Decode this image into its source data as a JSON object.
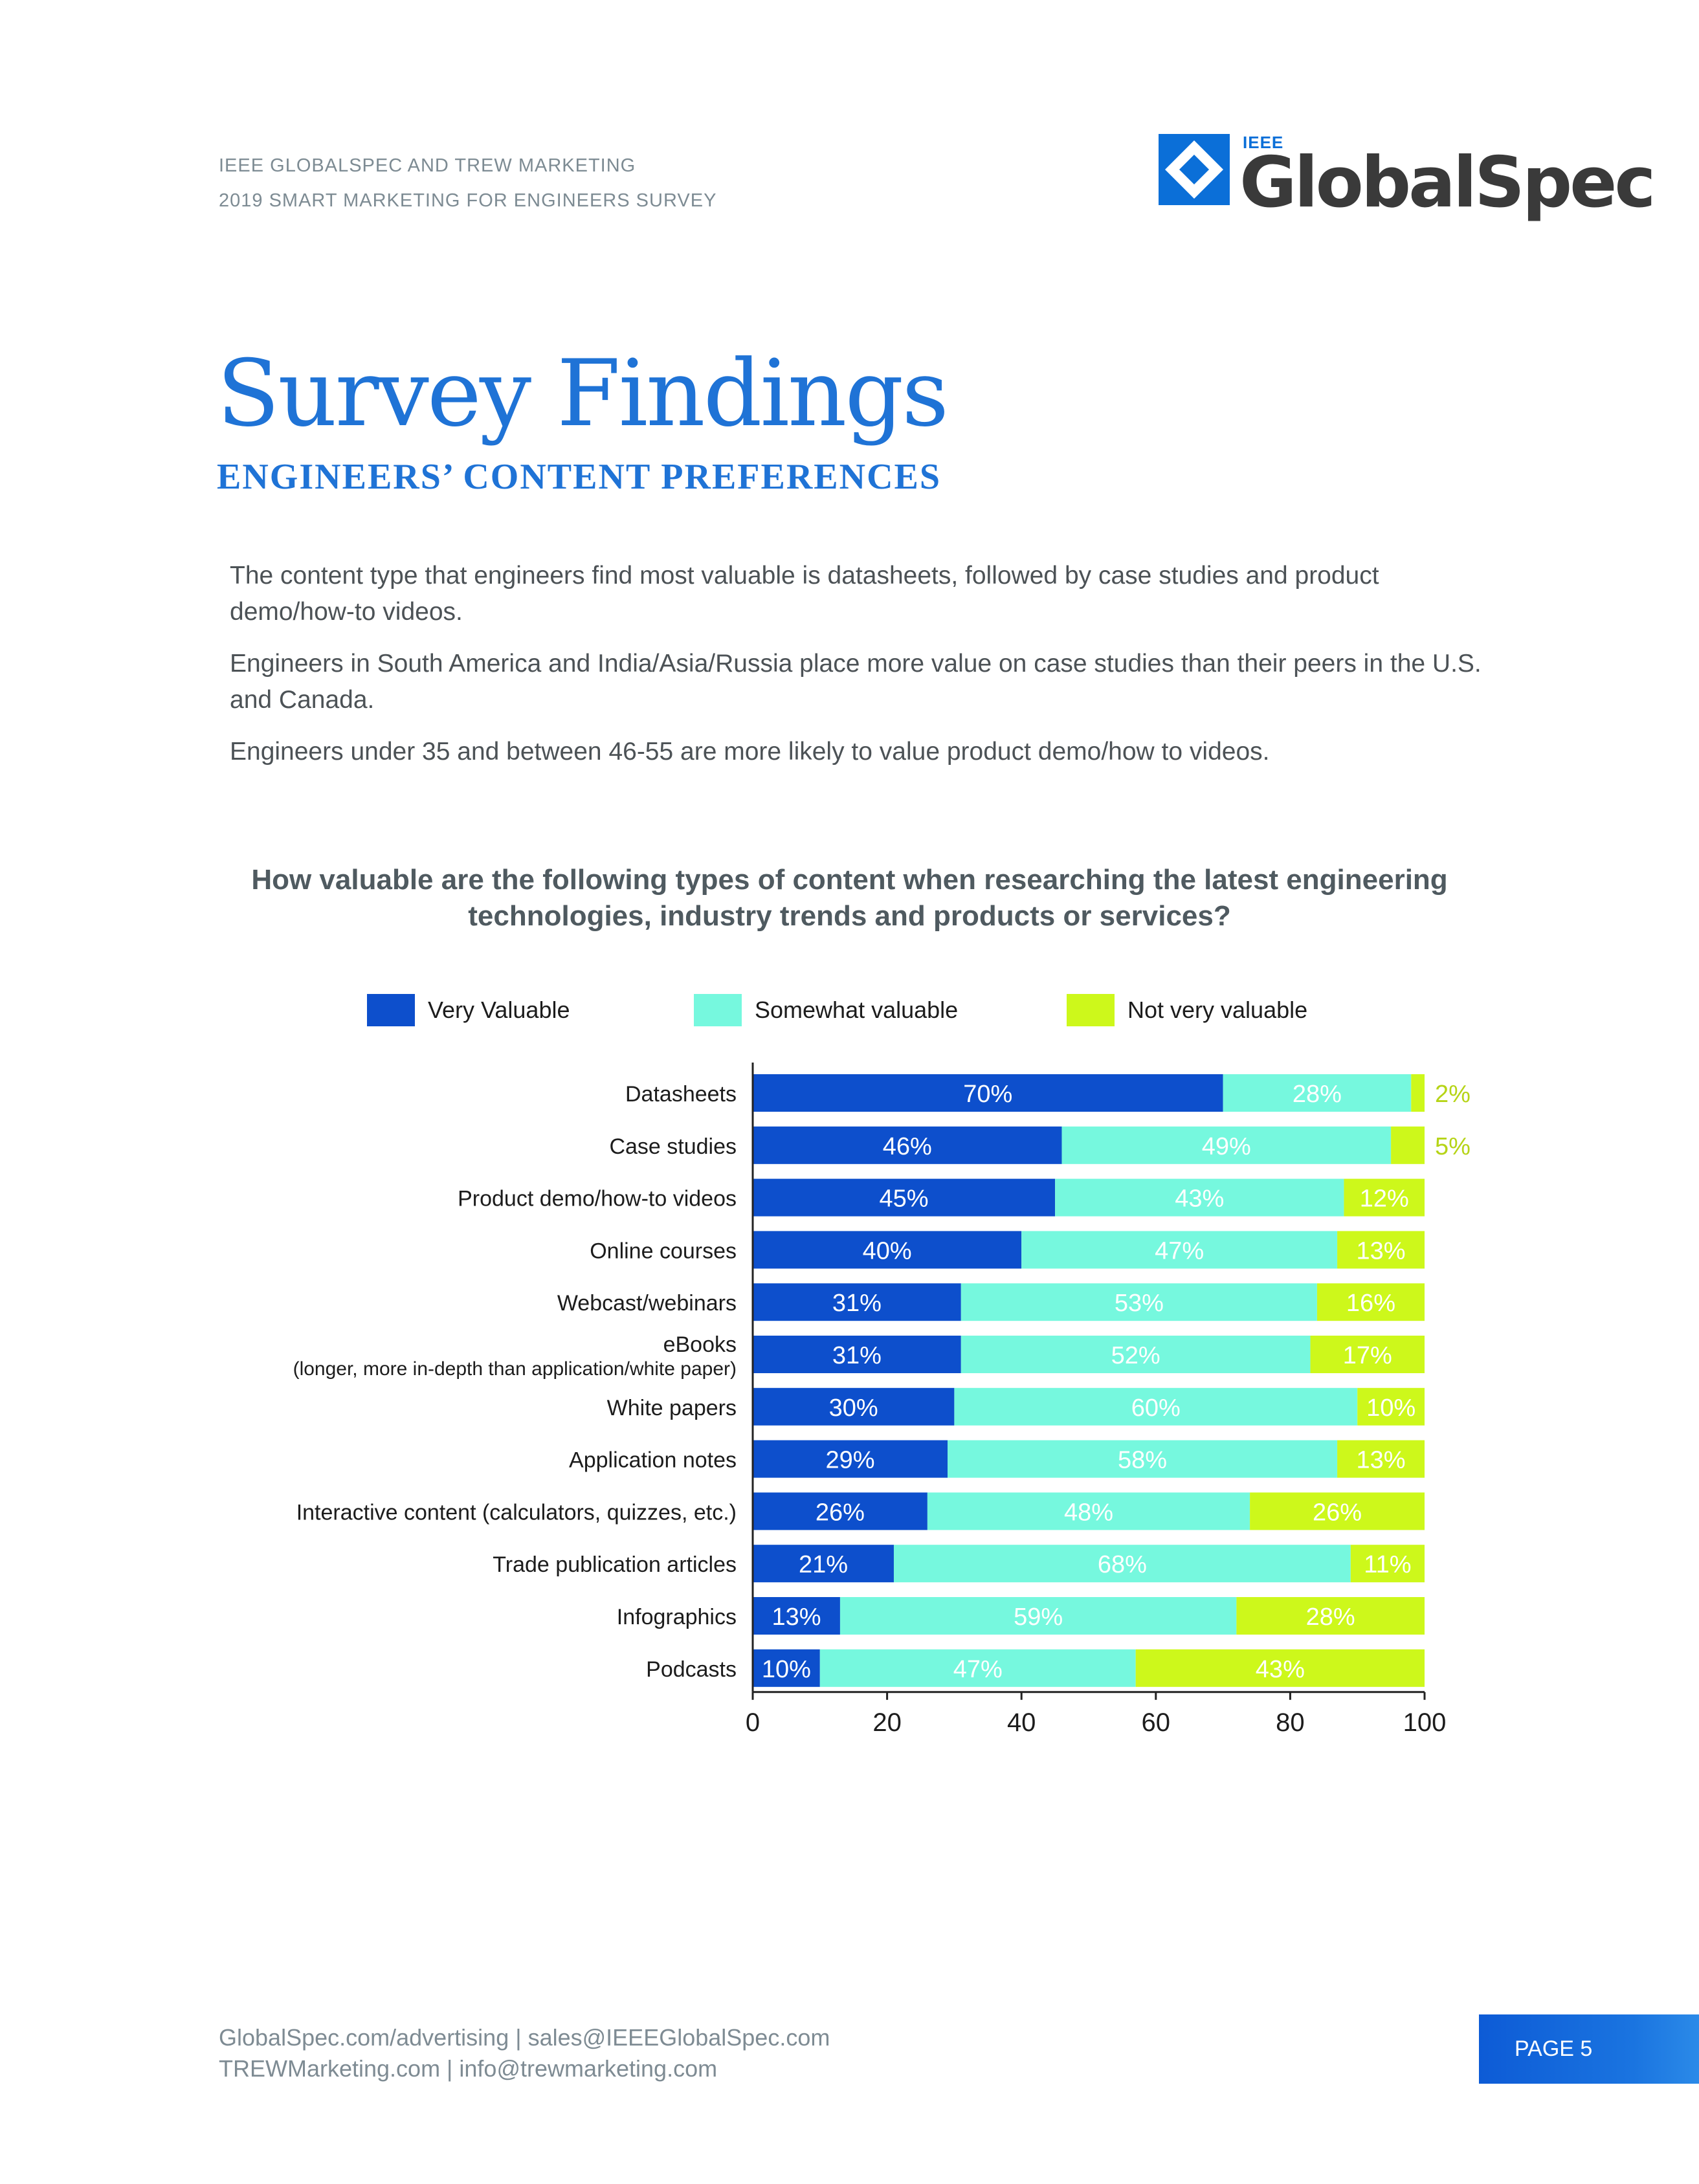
{
  "header": {
    "line1": "IEEE GLOBALSPEC AND TREW MARKETING",
    "line2": "2019 SMART MARKETING FOR ENGINEERS SURVEY"
  },
  "logo": {
    "small": "IEEE",
    "main": "GlobalSpec"
  },
  "page": {
    "title": "Survey Findings",
    "subtitle": "ENGINEERS’ CONTENT PREFERENCES",
    "paragraphs": [
      "The content type that engineers find most valuable is datasheets, followed by case studies and product demo/how-to videos.",
      "Engineers in South America and India/Asia/Russia place more value on case studies than their peers in the U.S. and Canada.",
      "Engineers under 35 and between 46-55 are more likely to value product demo/how to videos."
    ]
  },
  "colors": {
    "very": "#0d4fcc",
    "somewhat": "#76f8de",
    "not": "#cdf81b",
    "axis": "#222222",
    "tick_label": "#1c1c1c",
    "outside_label": "#b6d417"
  },
  "chart_data": {
    "type": "bar",
    "orientation": "horizontal",
    "stacked": true,
    "title": "How valuable are the following types of content when researching the latest engineering technologies, industry trends and products or services?",
    "xlim": [
      0,
      100
    ],
    "xticks": [
      0,
      20,
      40,
      60,
      80,
      100
    ],
    "legend_position": "top",
    "categories": [
      [
        "Datasheets"
      ],
      [
        "Case studies"
      ],
      [
        "Product demo/how-to videos"
      ],
      [
        "Online courses"
      ],
      [
        "Webcast/webinars"
      ],
      [
        "eBooks",
        "(longer, more in-depth than application/white paper)"
      ],
      [
        "White papers"
      ],
      [
        "Application notes"
      ],
      [
        "Interactive content (calculators, quizzes, etc.)"
      ],
      [
        "Trade publication articles"
      ],
      [
        "Infographics"
      ],
      [
        "Podcasts"
      ]
    ],
    "series": [
      {
        "name": "Very Valuable",
        "values": [
          70,
          46,
          45,
          40,
          31,
          31,
          30,
          29,
          26,
          21,
          13,
          10
        ]
      },
      {
        "name": "Somewhat valuable",
        "values": [
          28,
          49,
          43,
          47,
          53,
          52,
          60,
          58,
          48,
          68,
          59,
          47
        ]
      },
      {
        "name": "Not very valuable",
        "values": [
          2,
          5,
          12,
          13,
          16,
          17,
          10,
          13,
          26,
          11,
          28,
          43
        ]
      }
    ]
  },
  "footer": {
    "line1": "GlobalSpec.com/advertising  |  sales@IEEEGlobalSpec.com",
    "line2": "TREWMarketing.com  |  info@trewmarketing.com",
    "page_label": "PAGE 5"
  }
}
